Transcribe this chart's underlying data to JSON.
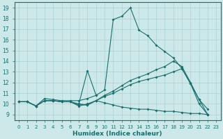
{
  "xlabel": "Humidex (Indice chaleur)",
  "bg_color": "#cce8e8",
  "grid_color": "#aad0d0",
  "line_color": "#1a6e6e",
  "xlim": [
    -0.5,
    23.5
  ],
  "ylim": [
    8.5,
    19.5
  ],
  "xticks": [
    0,
    1,
    2,
    3,
    4,
    5,
    6,
    7,
    8,
    9,
    10,
    11,
    12,
    13,
    14,
    15,
    16,
    17,
    18,
    19,
    20,
    21,
    22,
    23
  ],
  "yticks": [
    9,
    10,
    11,
    12,
    13,
    14,
    15,
    16,
    17,
    18,
    19
  ],
  "lines": [
    {
      "x": [
        0,
        1,
        2,
        3,
        4,
        5,
        6,
        7,
        8,
        9,
        10,
        11,
        12,
        13,
        14,
        15,
        16,
        17,
        18,
        19,
        20,
        21,
        22
      ],
      "y": [
        10.2,
        10.2,
        9.8,
        10.5,
        10.4,
        10.3,
        10.3,
        10.3,
        10.5,
        10.8,
        11.3,
        17.9,
        18.2,
        19.0,
        16.9,
        16.4,
        15.5,
        14.9,
        14.3,
        13.3,
        11.9,
        10.4,
        9.0
      ]
    },
    {
      "x": [
        0,
        1,
        2,
        3,
        4,
        5,
        6,
        7,
        8,
        9,
        10,
        11,
        12,
        13,
        14,
        15,
        16,
        17,
        18,
        19,
        20,
        21,
        22
      ],
      "y": [
        10.2,
        10.2,
        9.8,
        10.3,
        10.3,
        10.2,
        10.2,
        10.0,
        9.9,
        10.3,
        10.8,
        11.2,
        11.7,
        12.2,
        12.5,
        12.8,
        13.2,
        13.5,
        14.0,
        13.5,
        12.0,
        10.4,
        9.5
      ]
    },
    {
      "x": [
        0,
        1,
        2,
        3,
        4,
        5,
        6,
        7,
        8,
        9,
        10,
        11,
        12,
        13,
        14,
        15,
        16,
        17,
        18,
        19,
        20,
        21,
        22
      ],
      "y": [
        10.2,
        10.2,
        9.8,
        10.3,
        10.3,
        10.2,
        10.2,
        9.9,
        9.9,
        10.3,
        10.7,
        11.0,
        11.4,
        11.8,
        12.1,
        12.3,
        12.5,
        12.7,
        13.0,
        13.3,
        11.9,
        10.0,
        9.0
      ]
    },
    {
      "x": [
        0,
        1,
        2,
        3,
        4,
        5,
        6,
        7,
        8,
        9,
        10,
        11,
        12,
        13,
        14,
        15,
        16,
        17,
        18,
        19,
        20,
        21,
        22
      ],
      "y": [
        10.2,
        10.2,
        9.8,
        10.3,
        10.3,
        10.2,
        10.2,
        9.8,
        10.0,
        10.3,
        10.1,
        9.9,
        9.7,
        9.6,
        9.5,
        9.5,
        9.4,
        9.3,
        9.3,
        9.2,
        9.1,
        9.1,
        9.0
      ]
    },
    {
      "x": [
        7,
        8,
        9
      ],
      "y": [
        10.0,
        13.1,
        10.8
      ]
    }
  ]
}
